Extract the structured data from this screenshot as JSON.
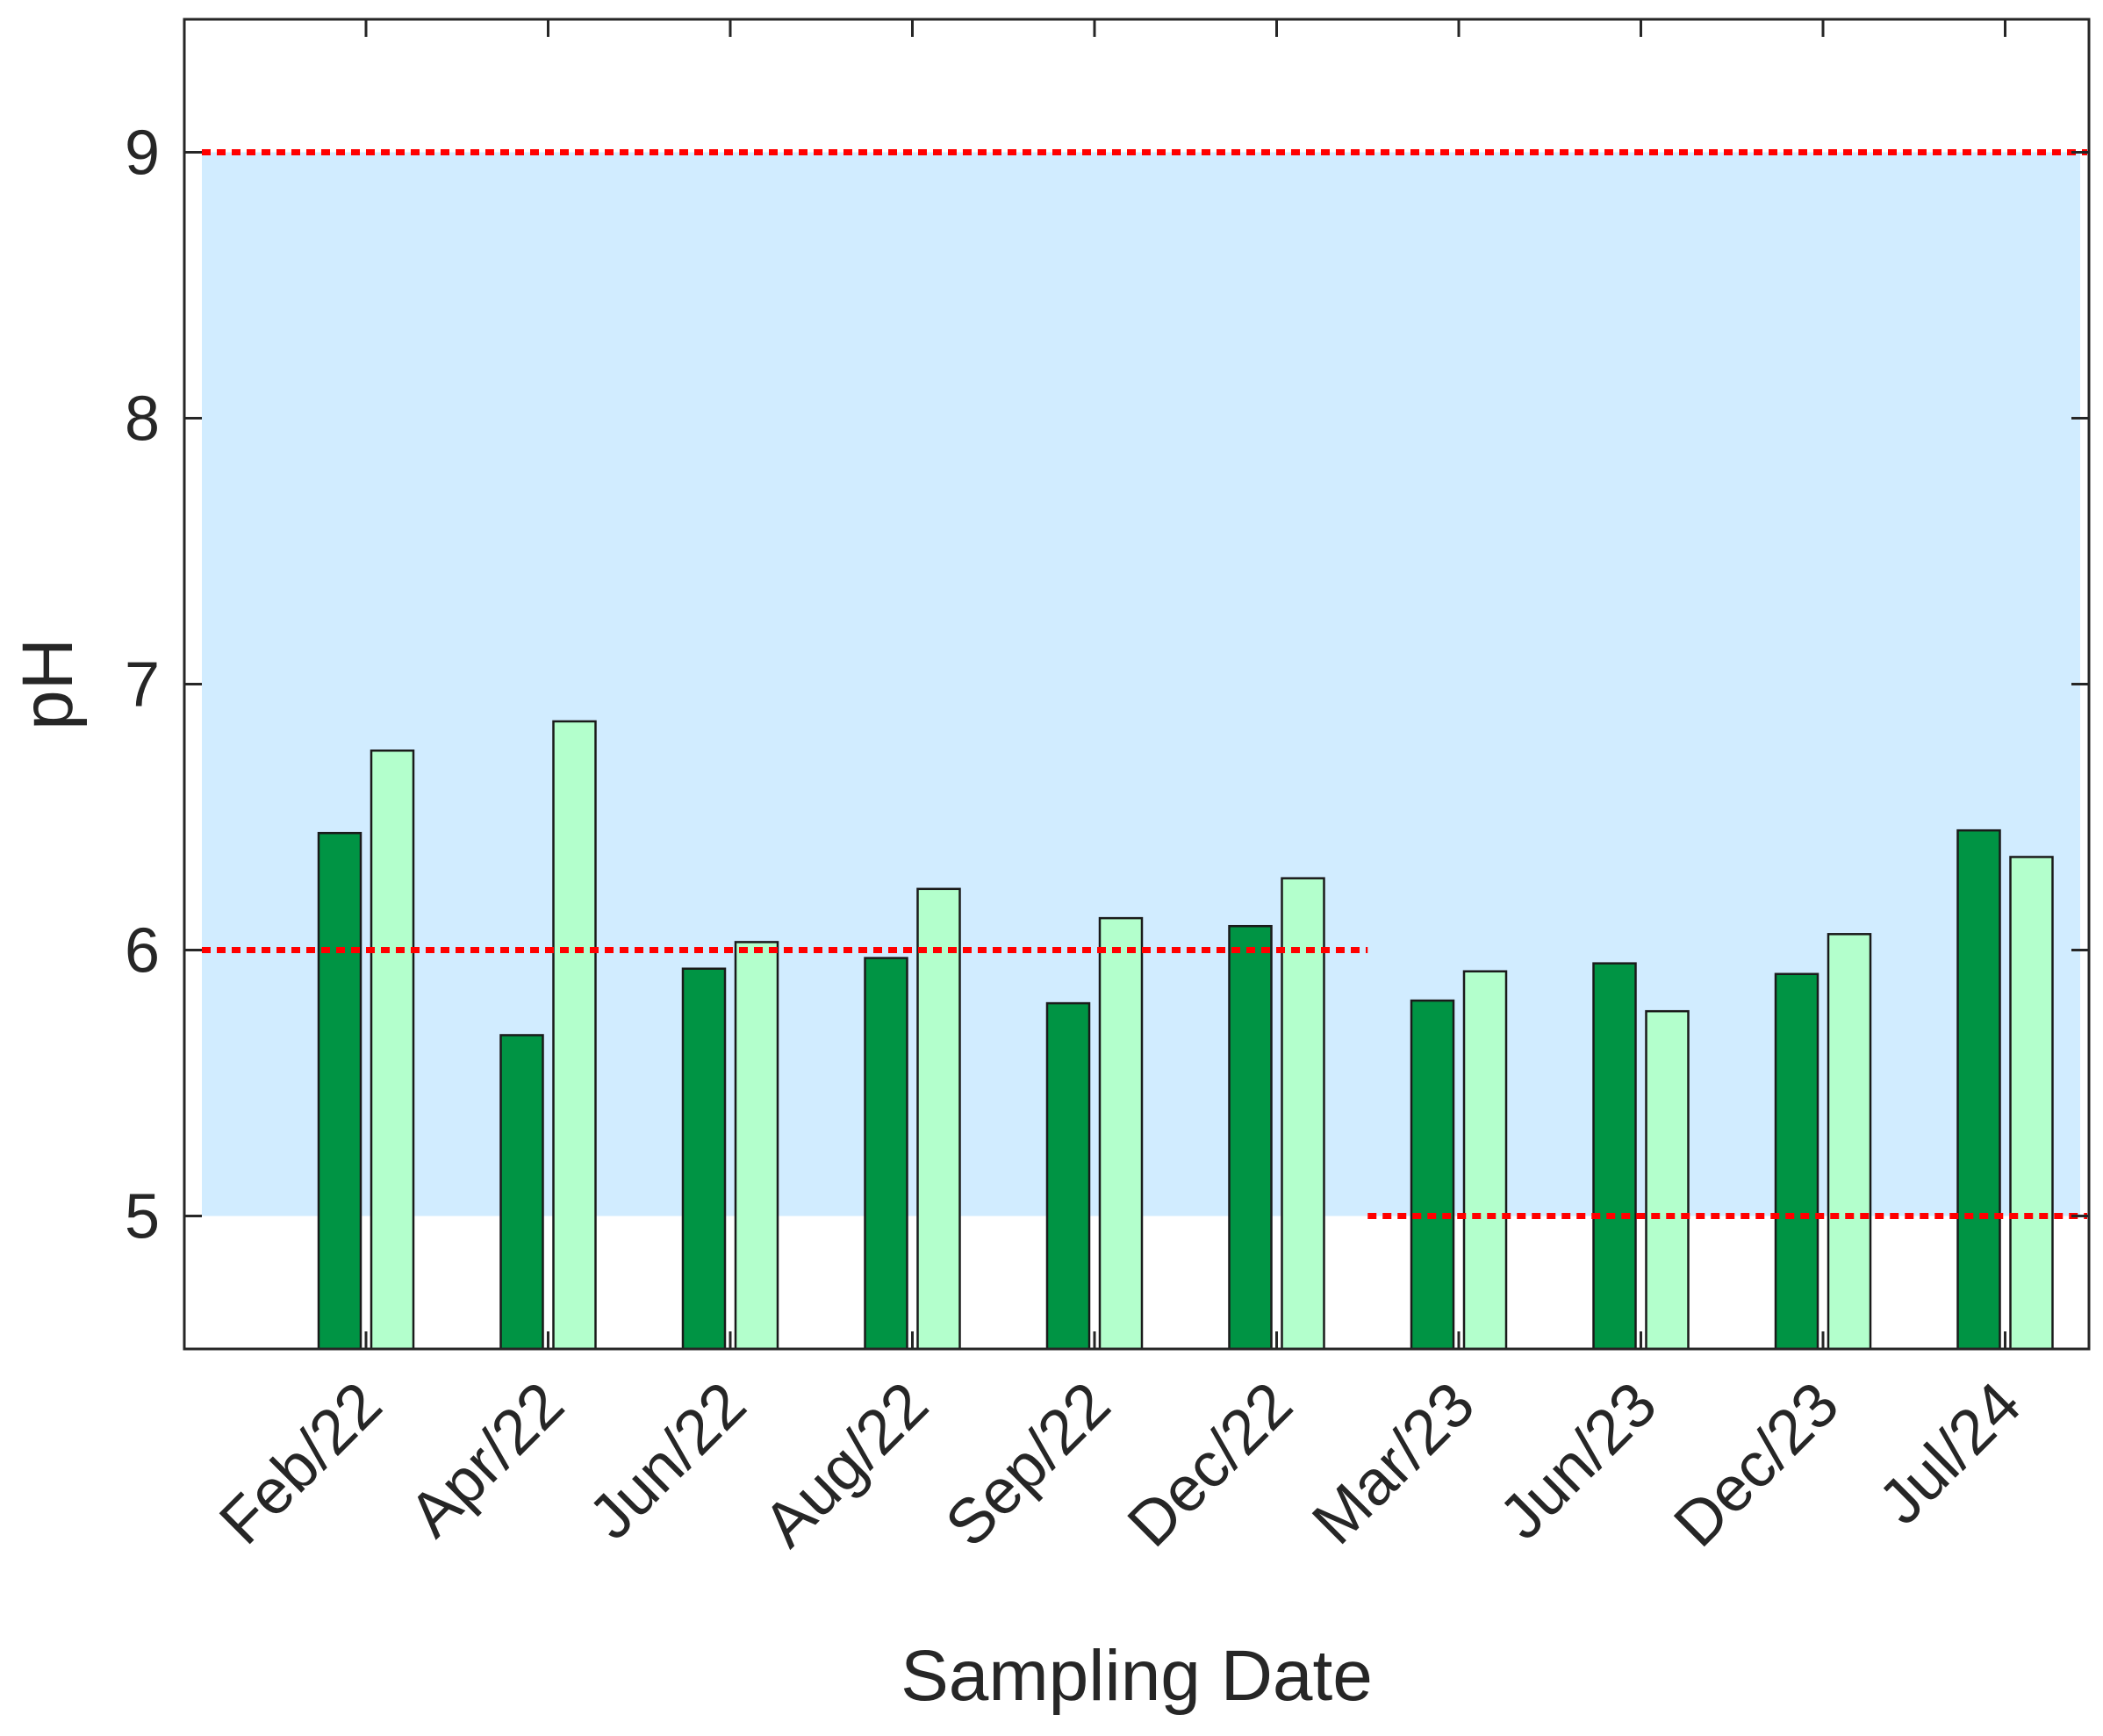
{
  "chart_data": {
    "type": "bar",
    "title": "",
    "xlabel": "Sampling Date",
    "ylabel": "pH",
    "categories": [
      "Feb/22",
      "Apr/22",
      "Jun/22",
      "Aug/22",
      "Sep/22",
      "Dec/22",
      "Mar/23",
      "Jun/23",
      "Dec/23",
      "Jul/24"
    ],
    "series": [
      {
        "values": [
          6.44,
          5.68,
          5.93,
          5.97,
          5.8,
          6.09,
          5.81,
          5.95,
          5.91,
          6.45
        ],
        "color": "#009444"
      },
      {
        "values": [
          6.75,
          6.86,
          6.03,
          6.23,
          6.12,
          6.27,
          5.92,
          5.77,
          6.06,
          6.35
        ],
        "color": "#b3ffcc"
      }
    ],
    "ylim": [
      4.5,
      9.5
    ],
    "yticks": [
      5,
      6,
      7,
      8,
      9
    ],
    "grid": false,
    "legend": "none",
    "shaded_band": {
      "from": 5,
      "to": 9,
      "color": "#d1ecff"
    },
    "reference_lines": [
      {
        "y": 9,
        "from_category": "Feb/22",
        "to_category": "Jul/24",
        "color": "#ff0000",
        "style": "dotted"
      },
      {
        "y": 6,
        "from_category": "Feb/22",
        "to_category": "Dec/22",
        "color": "#ff0000",
        "style": "dotted"
      },
      {
        "y": 5,
        "from_category": "Mar/23",
        "to_category": "Jul/24",
        "color": "#ff0000",
        "style": "dotted"
      }
    ]
  }
}
